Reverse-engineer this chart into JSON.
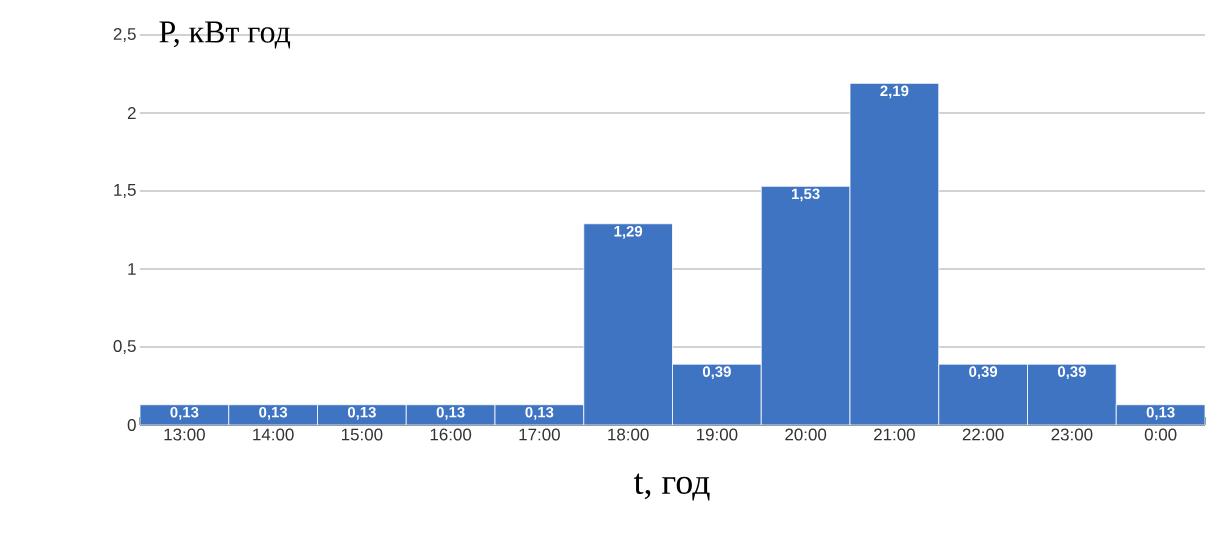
{
  "chart_data": {
    "type": "bar",
    "xlabel": "t, год",
    "ylabel": "P, кВт год",
    "categories": [
      "13:00",
      "14:00",
      "15:00",
      "16:00",
      "17:00",
      "18:00",
      "19:00",
      "20:00",
      "21:00",
      "22:00",
      "23:00",
      "0:00"
    ],
    "values": [
      0.13,
      0.13,
      0.13,
      0.13,
      0.13,
      1.29,
      0.39,
      1.53,
      2.19,
      0.39,
      0.39,
      0.13
    ],
    "value_labels": [
      "0,13",
      "0,13",
      "0,13",
      "0,13",
      "0,13",
      "1,29",
      "0,39",
      "1,53",
      "2,19",
      "0,39",
      "0,39",
      "0,13"
    ],
    "color": "#3f74c3",
    "ylim": [
      0,
      2.5
    ],
    "yticks": [
      0,
      {
        "value": 0.5,
        "label": "0,5"
      },
      1,
      {
        "value": 1.5,
        "label": "1,5"
      },
      2,
      {
        "value": 2.5,
        "label": "2,5"
      }
    ],
    "grid": "y"
  }
}
